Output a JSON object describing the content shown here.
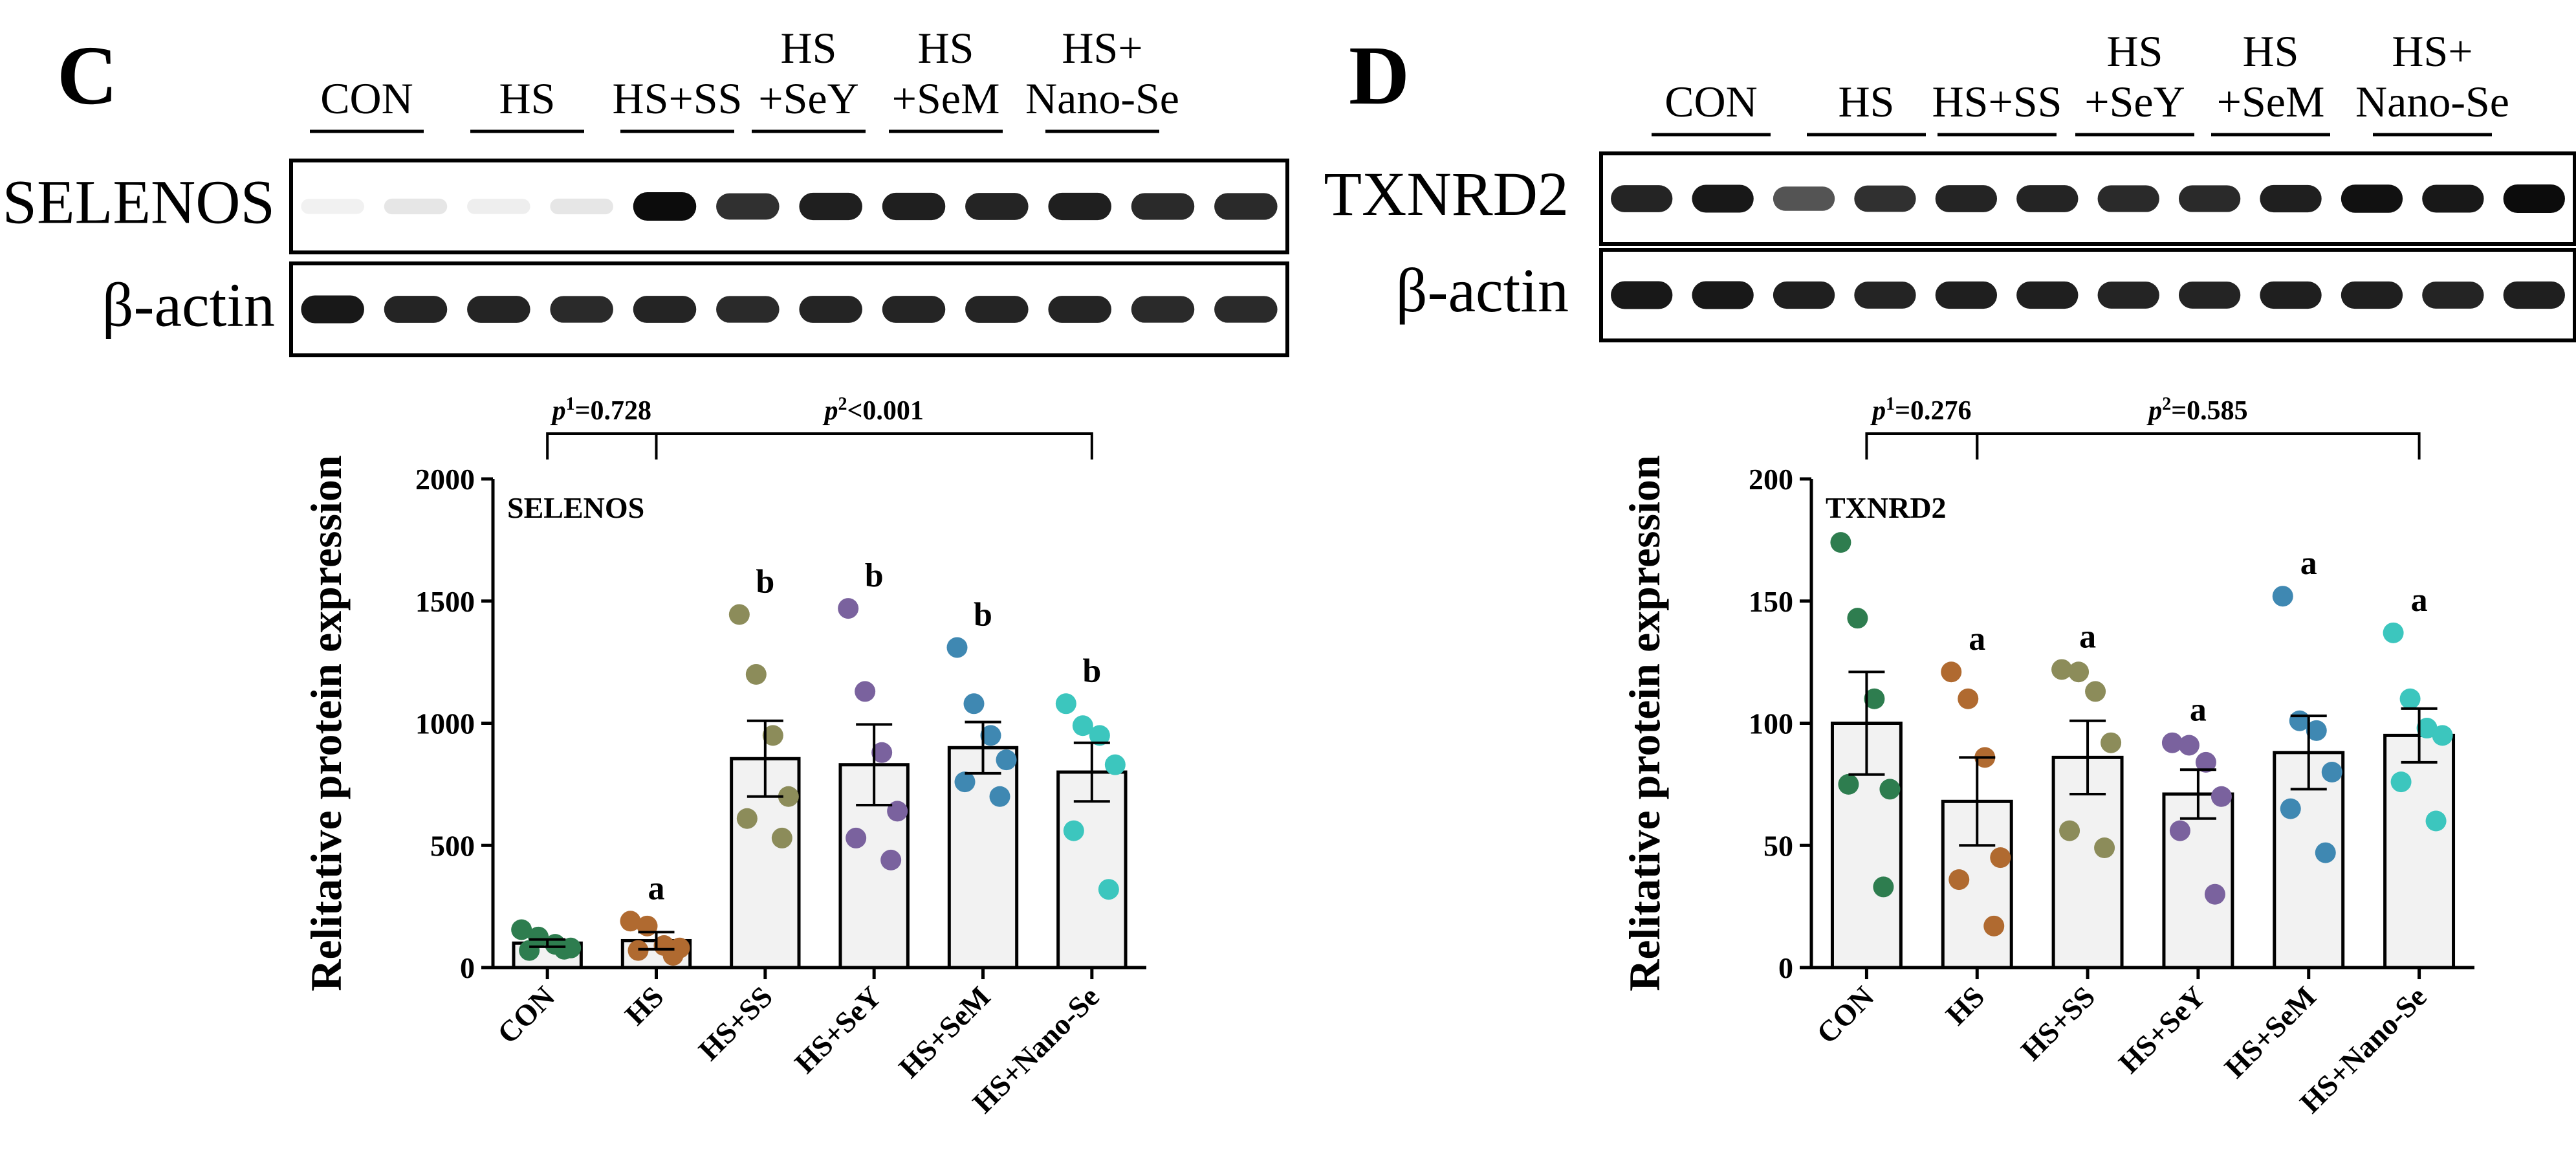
{
  "colors": {
    "CON": "#2e7d4f",
    "HS": "#b06a30",
    "HS+SS": "#8c8c5a",
    "HS+SeY": "#7a629e",
    "HS+SeM": "#3f88b2",
    "HS+Nano-Se": "#3cc6be",
    "bar_fill": "#f2f2f2",
    "blot_bg": "#ffffff",
    "band": "#0c0c0c"
  },
  "panels": [
    {
      "letter": "C",
      "blot": {
        "lanes": [
          "CON",
          "HS",
          "HS+SS",
          "HS\n+SeY",
          "HS\n+SeM",
          "HS+\nNano-Se"
        ],
        "rows": [
          {
            "label": "SELENOS",
            "intensity": [
              0.06,
              0.1,
              0.07,
              0.1,
              1.0,
              0.85,
              0.92,
              0.92,
              0.9,
              0.92,
              0.88,
              0.88
            ]
          },
          {
            "label": "β-actin",
            "intensity": [
              0.95,
              0.9,
              0.9,
              0.88,
              0.9,
              0.88,
              0.9,
              0.9,
              0.9,
              0.9,
              0.88,
              0.88
            ]
          }
        ]
      },
      "sig": [
        {
          "text_p": "p",
          "sup": "1",
          "text_rest": "=0.728"
        },
        {
          "text_p": "p",
          "sup": "2",
          "text_rest": "<0.001"
        }
      ]
    },
    {
      "letter": "D",
      "blot": {
        "lanes": [
          "CON",
          "HS",
          "HS+SS",
          "HS\n+SeY",
          "HS\n+SeM",
          "HS+\nNano-Se"
        ],
        "rows": [
          {
            "label": "TXNRD2",
            "intensity": [
              0.9,
              0.95,
              0.7,
              0.85,
              0.9,
              0.9,
              0.88,
              0.88,
              0.92,
              0.98,
              0.95,
              1.0
            ]
          },
          {
            "label": "β-actin",
            "intensity": [
              0.95,
              0.95,
              0.92,
              0.9,
              0.92,
              0.92,
              0.9,
              0.9,
              0.92,
              0.92,
              0.9,
              0.92
            ]
          }
        ]
      },
      "sig": [
        {
          "text_p": "p",
          "sup": "1",
          "text_rest": "=0.276"
        },
        {
          "text_p": "p",
          "sup": "2",
          "text_rest": "=0.585"
        }
      ]
    }
  ],
  "chart_data": [
    {
      "type": "bar",
      "title": "SELENOS",
      "ylabel": "Relitative protein expression",
      "xlabel": "",
      "ylim": [
        0,
        2000
      ],
      "yticks": [
        0,
        500,
        1000,
        1500,
        2000
      ],
      "categories": [
        "CON",
        "HS",
        "HS+SS",
        "HS+SeY",
        "HS+SeM",
        "HS+Nano-Se"
      ],
      "values": [
        100,
        110,
        855,
        830,
        900,
        800
      ],
      "sem": [
        15,
        35,
        155,
        165,
        105,
        120
      ],
      "letters": [
        "",
        "a",
        "b",
        "b",
        "b",
        "b"
      ],
      "points": [
        [
          155,
          125,
          95,
          80,
          70,
          75
        ],
        [
          190,
          170,
          90,
          80,
          70,
          50
        ],
        [
          1445,
          1200,
          950,
          700,
          610,
          530
        ],
        [
          1470,
          1130,
          880,
          640,
          530,
          440
        ],
        [
          1310,
          1080,
          950,
          850,
          760,
          700
        ],
        [
          1080,
          990,
          950,
          830,
          560,
          320
        ]
      ]
    },
    {
      "type": "bar",
      "title": "TXNRD2",
      "ylabel": "Relitative protein expression",
      "xlabel": "",
      "ylim": [
        0,
        200
      ],
      "yticks": [
        0,
        50,
        100,
        150,
        200
      ],
      "categories": [
        "CON",
        "HS",
        "HS+SS",
        "HS+SeY",
        "HS+SeM",
        "HS+Nano-Se"
      ],
      "values": [
        100,
        68,
        86,
        71,
        88,
        95
      ],
      "sem": [
        21,
        18,
        15,
        10,
        15,
        11
      ],
      "letters": [
        "",
        "a",
        "a",
        "a",
        "a",
        "a"
      ],
      "points": [
        [
          174,
          143,
          110,
          73,
          75,
          33
        ],
        [
          121,
          110,
          86,
          45,
          36,
          17
        ],
        [
          122,
          121,
          113,
          92,
          56,
          49
        ],
        [
          92,
          91,
          84,
          70,
          56,
          30
        ],
        [
          152,
          101,
          97,
          80,
          65,
          47
        ],
        [
          137,
          110,
          98,
          95,
          76,
          60
        ]
      ]
    }
  ]
}
